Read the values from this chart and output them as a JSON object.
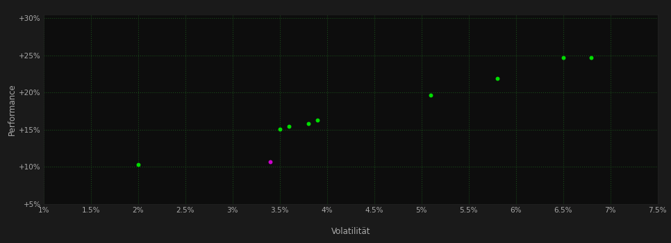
{
  "background_color": "#1a1a1a",
  "plot_bg_color": "#0d0d0d",
  "grid_color": "#1a4a1a",
  "text_color": "#aaaaaa",
  "xlabel": "Volatilität",
  "ylabel": "Performance",
  "xlim": [
    0.01,
    0.075
  ],
  "ylim": [
    0.05,
    0.305
  ],
  "xticks": [
    0.01,
    0.015,
    0.02,
    0.025,
    0.03,
    0.035,
    0.04,
    0.045,
    0.05,
    0.055,
    0.06,
    0.065,
    0.07,
    0.075
  ],
  "yticks": [
    0.05,
    0.1,
    0.15,
    0.2,
    0.25,
    0.3
  ],
  "ytick_labels": [
    "+5%",
    "+10%",
    "+15%",
    "+20%",
    "+25%",
    "+30%"
  ],
  "xtick_labels": [
    "1%",
    "1.5%",
    "2%",
    "2.5%",
    "3%",
    "3.5%",
    "4%",
    "4.5%",
    "5%",
    "5.5%",
    "6%",
    "6.5%",
    "7%",
    "7.5%"
  ],
  "green_points": [
    [
      0.02,
      0.103
    ],
    [
      0.035,
      0.151
    ],
    [
      0.036,
      0.155
    ],
    [
      0.038,
      0.158
    ],
    [
      0.039,
      0.163
    ],
    [
      0.051,
      0.197
    ],
    [
      0.058,
      0.219
    ],
    [
      0.065,
      0.247
    ],
    [
      0.068,
      0.247
    ]
  ],
  "magenta_points": [
    [
      0.034,
      0.107
    ]
  ],
  "point_size": 18,
  "green_color": "#00dd00",
  "magenta_color": "#cc00cc",
  "figwidth": 9.66,
  "figheight": 3.5,
  "dpi": 100
}
